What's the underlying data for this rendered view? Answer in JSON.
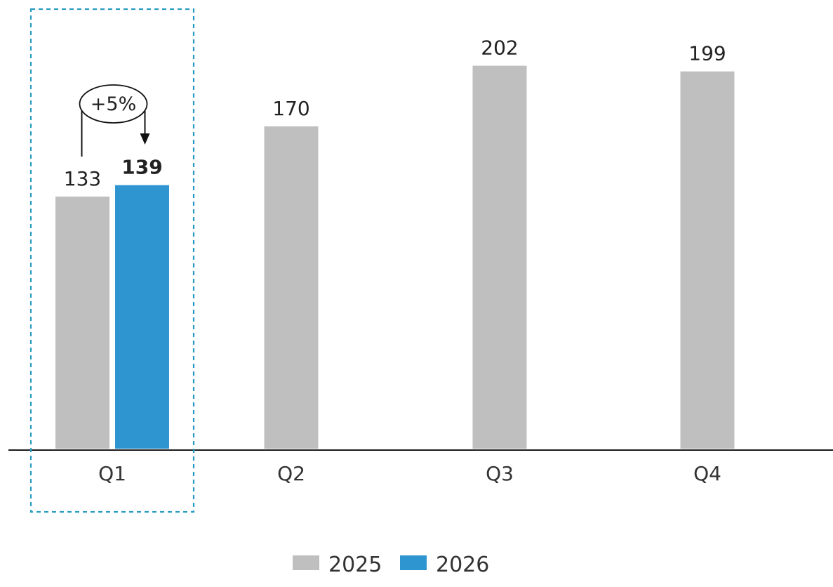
{
  "chart_data": {
    "type": "bar",
    "categories": [
      "Q1",
      "Q2",
      "Q3",
      "Q4"
    ],
    "series": [
      {
        "name": "2025",
        "color": "#bfbfbf",
        "values": [
          133,
          170,
          202,
          199
        ]
      },
      {
        "name": "2026",
        "color": "#2e95d1",
        "values": [
          139,
          null,
          null,
          null
        ]
      }
    ],
    "ylim": [
      0,
      220
    ],
    "grid": false,
    "legend_position": "bottom-center",
    "highlight": {
      "category": "Q1",
      "style": "dashed-box",
      "color": "#2a9cc2"
    },
    "annotation": {
      "text": "+5%",
      "from_series": "2025",
      "to_series": "2026",
      "category": "Q1"
    }
  }
}
